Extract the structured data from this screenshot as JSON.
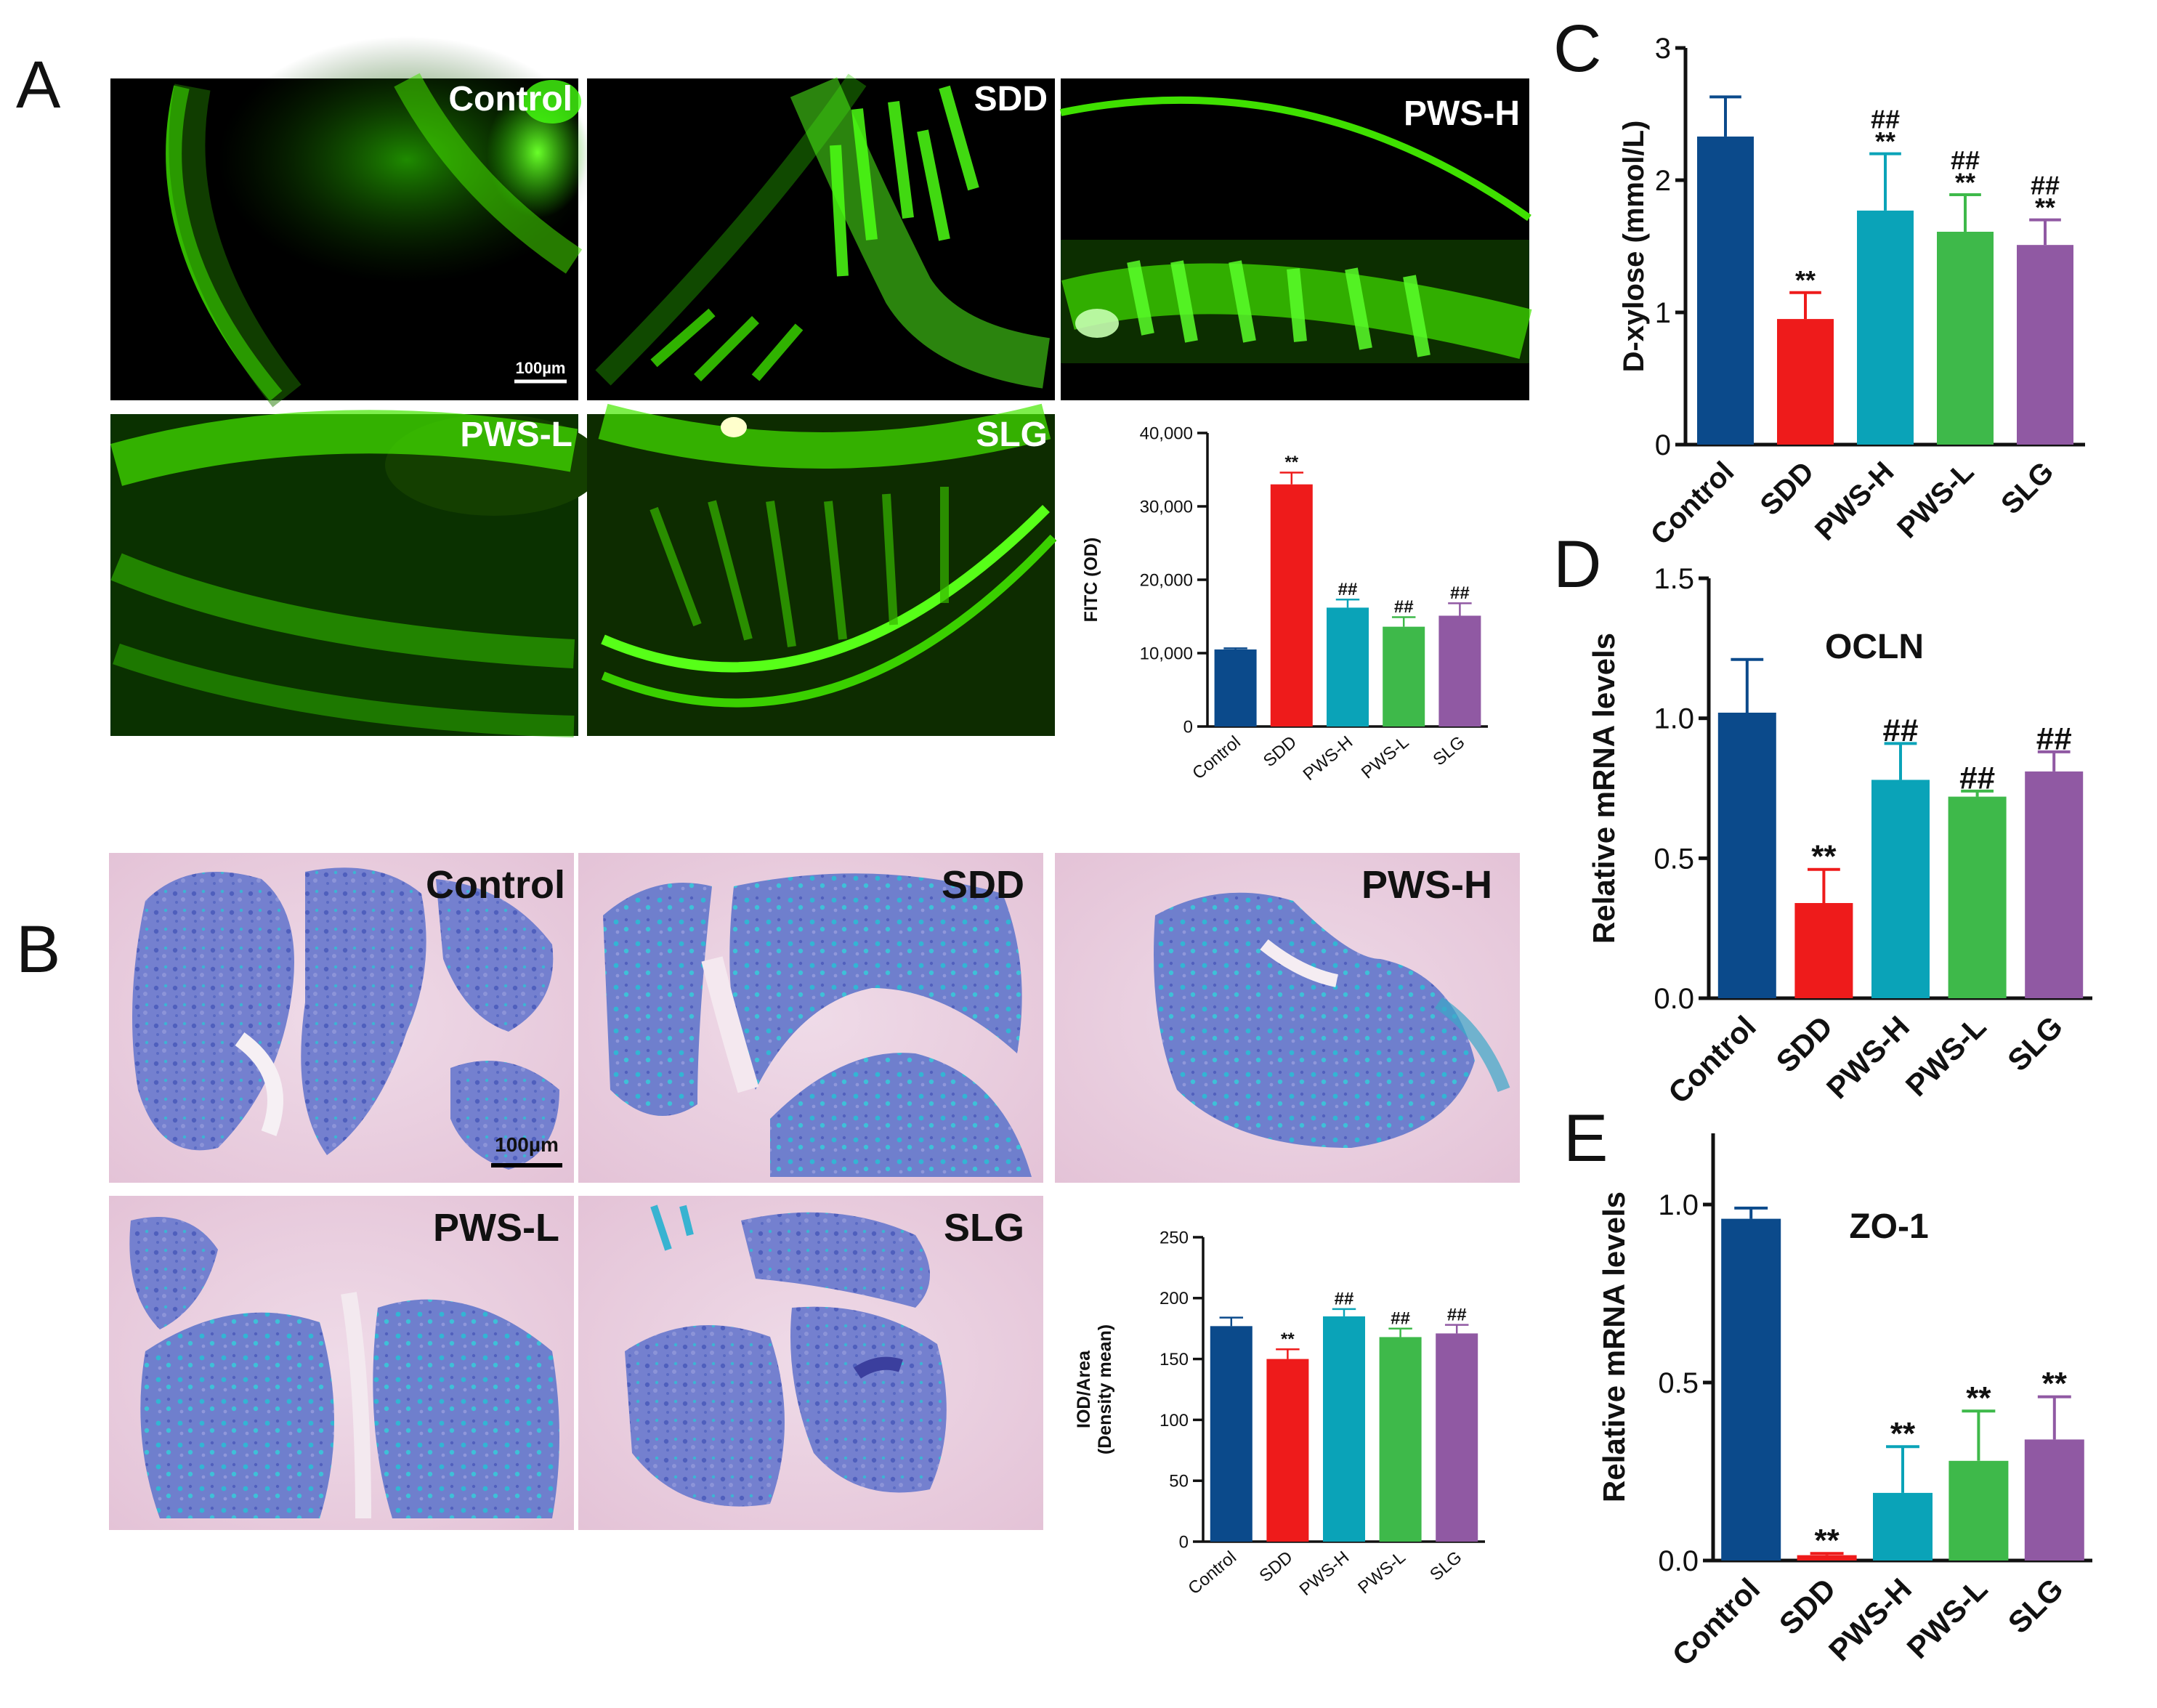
{
  "figure": {
    "panel_letters": {
      "A": "A",
      "B": "B",
      "C": "C",
      "D": "D",
      "E": "E"
    },
    "scale_bar_label": "100µm"
  },
  "panel_a": {
    "images": [
      {
        "label": "Control"
      },
      {
        "label": "SDD"
      },
      {
        "label": "PWS-H"
      },
      {
        "label": "PWS-L"
      },
      {
        "label": "SLG"
      }
    ],
    "scale_bar": "100µm"
  },
  "panel_b": {
    "images": [
      {
        "label": "Control"
      },
      {
        "label": "SDD"
      },
      {
        "label": "PWS-H"
      },
      {
        "label": "PWS-L"
      },
      {
        "label": "SLG"
      }
    ],
    "scale_bar": "100µm"
  },
  "colors": {
    "Control": "#0b4a8b",
    "SDD": "#ee1b1b",
    "PWS-H": "#0aa3b8",
    "PWS-L": "#3eb94a",
    "SLG": "#9059a3",
    "fluorescence": "#33ff00",
    "stain_blue": "#6f7bd1",
    "stain_pink": "#e9c8dc",
    "stain_cyan": "#37b4d2"
  },
  "chart_data": [
    {
      "id": "fitc",
      "type": "bar",
      "categories": [
        "Control",
        "SDD",
        "PWS-H",
        "PWS-L",
        "SLG"
      ],
      "values": [
        10500,
        33000,
        16200,
        13600,
        15100
      ],
      "errors": [
        150,
        1600,
        1100,
        1300,
        1700
      ],
      "annotations": [
        [
          "",
          ""
        ],
        [
          "**",
          ""
        ],
        [
          "##",
          ""
        ],
        [
          "##",
          ""
        ],
        [
          "##",
          ""
        ]
      ],
      "ylabel": "FITC (OD)",
      "ylim": [
        0,
        40000
      ],
      "yticks": [
        "0",
        "10,000",
        "20,000",
        "30,000",
        "40,000"
      ],
      "ytick_values": [
        0,
        10000,
        20000,
        30000,
        40000
      ],
      "colors": [
        "#0b4a8b",
        "#ee1b1b",
        "#0aa3b8",
        "#3eb94a",
        "#9059a3"
      ]
    },
    {
      "id": "iod",
      "type": "bar",
      "categories": [
        "Control",
        "SDD",
        "PWS-H",
        "PWS-L",
        "SLG"
      ],
      "values": [
        177,
        150,
        185,
        168,
        171
      ],
      "errors": [
        7,
        8,
        6,
        7,
        7
      ],
      "annotations": [
        [
          "",
          ""
        ],
        [
          "**",
          ""
        ],
        [
          "##",
          ""
        ],
        [
          "##",
          ""
        ],
        [
          "##",
          ""
        ]
      ],
      "ylabel_lines": [
        "IOD/Area",
        "(Density mean)"
      ],
      "ylim": [
        0,
        250
      ],
      "yticks": [
        "0",
        "50",
        "100",
        "150",
        "200",
        "250"
      ],
      "ytick_values": [
        0,
        50,
        100,
        150,
        200,
        250
      ],
      "colors": [
        "#0b4a8b",
        "#ee1b1b",
        "#0aa3b8",
        "#3eb94a",
        "#9059a3"
      ]
    },
    {
      "id": "dxylose",
      "type": "bar",
      "categories": [
        "Control",
        "SDD",
        "PWS-H",
        "PWS-L",
        "SLG"
      ],
      "values": [
        2.33,
        0.95,
        1.77,
        1.61,
        1.51
      ],
      "errors": [
        0.3,
        0.2,
        0.43,
        0.28,
        0.19
      ],
      "annotations": [
        [
          "",
          ""
        ],
        [
          "**",
          ""
        ],
        [
          "**",
          "##"
        ],
        [
          "**",
          "##"
        ],
        [
          "**",
          "##"
        ]
      ],
      "ylabel": "D-xylose (mmol/L)",
      "ylim": [
        0,
        3
      ],
      "yticks": [
        "0",
        "1",
        "2",
        "3"
      ],
      "ytick_values": [
        0,
        1,
        2,
        3
      ],
      "colors": [
        "#0b4a8b",
        "#ee1b1b",
        "#0aa3b8",
        "#3eb94a",
        "#9059a3"
      ]
    },
    {
      "id": "ocln",
      "type": "bar",
      "title": "OCLN",
      "categories": [
        "Control",
        "SDD",
        "PWS-H",
        "PWS-L",
        "SLG"
      ],
      "values": [
        1.02,
        0.34,
        0.78,
        0.72,
        0.81
      ],
      "errors": [
        0.19,
        0.12,
        0.13,
        0.02,
        0.07
      ],
      "annotations": [
        [
          "",
          ""
        ],
        [
          "**",
          ""
        ],
        [
          "##",
          ""
        ],
        [
          "##",
          ""
        ],
        [
          "##",
          ""
        ]
      ],
      "ylabel": "Relative mRNA levels",
      "ylim": [
        0,
        1.5
      ],
      "yticks": [
        "0.0",
        "0.5",
        "1.0",
        "1.5"
      ],
      "ytick_values": [
        0,
        0.5,
        1.0,
        1.5
      ],
      "colors": [
        "#0b4a8b",
        "#ee1b1b",
        "#0aa3b8",
        "#3eb94a",
        "#9059a3"
      ]
    },
    {
      "id": "zo1",
      "type": "bar",
      "title": "ZO-1",
      "categories": [
        "Control",
        "SDD",
        "PWS-H",
        "PWS-L",
        "SLG"
      ],
      "values": [
        0.96,
        0.015,
        0.19,
        0.28,
        0.34
      ],
      "errors": [
        0.03,
        0.005,
        0.13,
        0.14,
        0.12
      ],
      "annotations": [
        [
          "",
          ""
        ],
        [
          "**",
          ""
        ],
        [
          "**",
          ""
        ],
        [
          "**",
          ""
        ],
        [
          "**",
          ""
        ]
      ],
      "ylabel": "Relative mRNA levels",
      "ylim": [
        0,
        1.2
      ],
      "yticks": [
        "0.0",
        "0.5",
        "1.0"
      ],
      "ytick_values": [
        0,
        0.5,
        1.0
      ],
      "colors": [
        "#0b4a8b",
        "#ee1b1b",
        "#0aa3b8",
        "#3eb94a",
        "#9059a3"
      ]
    }
  ]
}
